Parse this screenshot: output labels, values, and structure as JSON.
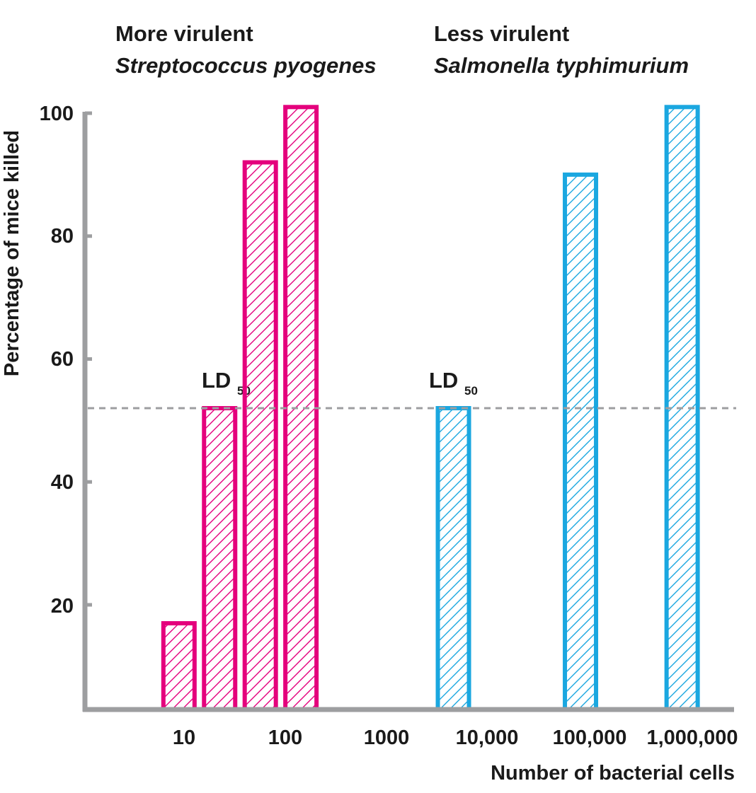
{
  "chart_data": {
    "type": "bar",
    "xlabel": "Number of bacterial cells",
    "ylabel": "Percentage of mice killed",
    "x_ticks": [
      "10",
      "100",
      "1000",
      "10,000",
      "100,000",
      "1,000,000"
    ],
    "y_ticks": [
      "20",
      "40",
      "60",
      "80",
      "100"
    ],
    "ylim": [
      4,
      101
    ],
    "groups": [
      {
        "heading": "More virulent",
        "organism": "Streptococcus pyogenes",
        "color": "#e4007c",
        "ld50_label": "LD",
        "ld50_subscript": "50",
        "bars": [
          {
            "x_log": 0.95,
            "value": 17
          },
          {
            "x_log": 1.35,
            "value": 52
          },
          {
            "x_log": 1.75,
            "value": 92
          },
          {
            "x_log": 2.15,
            "value": 101
          }
        ]
      },
      {
        "heading": "Less virulent",
        "organism": "Salmonella typhimurium",
        "color": "#1aa7e0",
        "ld50_label": "LD",
        "ld50_subscript": "50",
        "bars": [
          {
            "x_log": 3.65,
            "value": 52
          },
          {
            "x_log": 4.9,
            "value": 90
          },
          {
            "x_log": 5.9,
            "value": 101
          }
        ]
      }
    ],
    "ld50_line_value": 52,
    "axis_color": "#9d9ea0",
    "ld50_line_color": "#9d9ea0"
  }
}
